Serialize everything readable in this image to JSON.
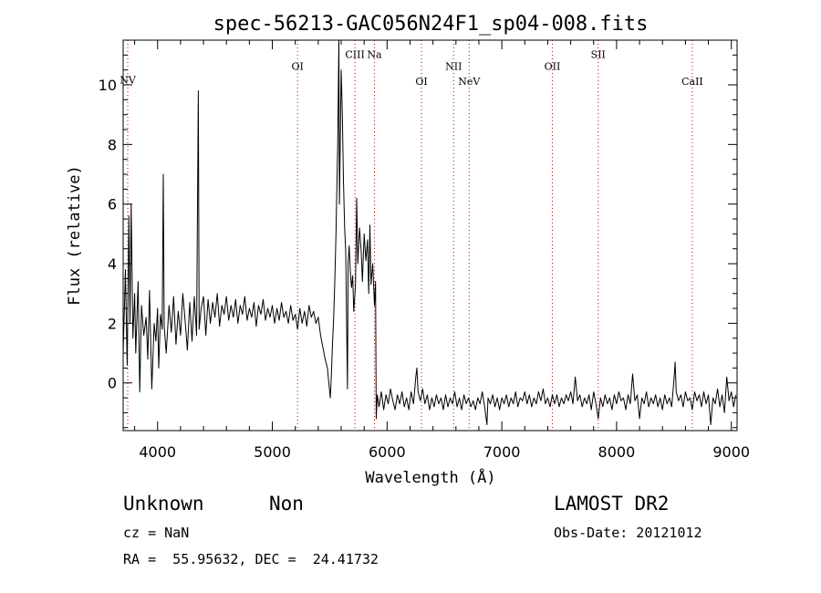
{
  "chart_data": {
    "type": "line",
    "title": "spec-56213-GAC056N24F1_sp04-008.fits",
    "xlabel": "Wavelength (Å)",
    "ylabel": "Flux (relative)",
    "xlim": [
      3700,
      9050
    ],
    "ylim": [
      -1.6,
      11.5
    ],
    "xticks": [
      4000,
      5000,
      6000,
      7000,
      8000,
      9000
    ],
    "yticks": [
      0,
      2,
      4,
      6,
      8,
      10
    ],
    "grid": false,
    "series": [
      {
        "points": [
          [
            3700,
            1.0
          ],
          [
            3720,
            3.8
          ],
          [
            3735,
            0.6
          ],
          [
            3750,
            5.6
          ],
          [
            3760,
            2.0
          ],
          [
            3770,
            6.0
          ],
          [
            3785,
            1.5
          ],
          [
            3800,
            3.0
          ],
          [
            3810,
            1.0
          ],
          [
            3830,
            3.4
          ],
          [
            3845,
            -0.3
          ],
          [
            3860,
            2.6
          ],
          [
            3880,
            1.6
          ],
          [
            3900,
            2.2
          ],
          [
            3915,
            0.8
          ],
          [
            3930,
            3.1
          ],
          [
            3950,
            -0.2
          ],
          [
            3970,
            2.0
          ],
          [
            3985,
            1.4
          ],
          [
            4000,
            2.5
          ],
          [
            4010,
            0.5
          ],
          [
            4025,
            2.3
          ],
          [
            4040,
            1.8
          ],
          [
            4050,
            7.0
          ],
          [
            4058,
            1.9
          ],
          [
            4075,
            1.0
          ],
          [
            4100,
            2.6
          ],
          [
            4120,
            1.7
          ],
          [
            4140,
            2.9
          ],
          [
            4160,
            1.3
          ],
          [
            4180,
            2.4
          ],
          [
            4200,
            1.6
          ],
          [
            4220,
            3.0
          ],
          [
            4240,
            2.1
          ],
          [
            4260,
            1.1
          ],
          [
            4280,
            2.7
          ],
          [
            4300,
            1.4
          ],
          [
            4320,
            2.9
          ],
          [
            4340,
            1.6
          ],
          [
            4355,
            9.8
          ],
          [
            4362,
            1.8
          ],
          [
            4380,
            2.5
          ],
          [
            4400,
            2.9
          ],
          [
            4420,
            1.6
          ],
          [
            4440,
            2.8
          ],
          [
            4460,
            2.0
          ],
          [
            4480,
            2.7
          ],
          [
            4500,
            2.2
          ],
          [
            4520,
            3.0
          ],
          [
            4540,
            1.9
          ],
          [
            4560,
            2.6
          ],
          [
            4580,
            2.3
          ],
          [
            4600,
            2.9
          ],
          [
            4620,
            2.1
          ],
          [
            4640,
            2.6
          ],
          [
            4660,
            2.2
          ],
          [
            4680,
            2.8
          ],
          [
            4700,
            2.0
          ],
          [
            4720,
            2.6
          ],
          [
            4740,
            2.3
          ],
          [
            4760,
            2.9
          ],
          [
            4780,
            2.1
          ],
          [
            4800,
            2.5
          ],
          [
            4820,
            2.2
          ],
          [
            4840,
            2.7
          ],
          [
            4860,
            1.9
          ],
          [
            4880,
            2.6
          ],
          [
            4900,
            2.3
          ],
          [
            4920,
            2.8
          ],
          [
            4940,
            2.1
          ],
          [
            4960,
            2.5
          ],
          [
            4980,
            2.2
          ],
          [
            5000,
            2.6
          ],
          [
            5020,
            2.0
          ],
          [
            5040,
            2.5
          ],
          [
            5060,
            2.1
          ],
          [
            5080,
            2.7
          ],
          [
            5100,
            2.2
          ],
          [
            5120,
            2.4
          ],
          [
            5140,
            2.0
          ],
          [
            5160,
            2.6
          ],
          [
            5180,
            2.1
          ],
          [
            5200,
            2.3
          ],
          [
            5220,
            1.8
          ],
          [
            5240,
            2.5
          ],
          [
            5260,
            2.0
          ],
          [
            5280,
            2.4
          ],
          [
            5300,
            1.9
          ],
          [
            5320,
            2.6
          ],
          [
            5340,
            2.2
          ],
          [
            5360,
            2.4
          ],
          [
            5380,
            2.0
          ],
          [
            5400,
            2.2
          ],
          [
            5420,
            1.6
          ],
          [
            5440,
            1.2
          ],
          [
            5460,
            0.8
          ],
          [
            5480,
            0.5
          ],
          [
            5495,
            -0.1
          ],
          [
            5505,
            -0.5
          ],
          [
            5515,
            0.3
          ],
          [
            5525,
            1.4
          ],
          [
            5535,
            2.2
          ],
          [
            5545,
            3.5
          ],
          [
            5555,
            5.0
          ],
          [
            5570,
            8.0
          ],
          [
            5580,
            11.5
          ],
          [
            5585,
            6.0
          ],
          [
            5600,
            10.5
          ],
          [
            5610,
            9.0
          ],
          [
            5620,
            6.8
          ],
          [
            5630,
            5.2
          ],
          [
            5640,
            4.4
          ],
          [
            5650,
            1.2
          ],
          [
            5655,
            -0.2
          ],
          [
            5660,
            4.0
          ],
          [
            5670,
            4.6
          ],
          [
            5680,
            3.7
          ],
          [
            5690,
            3.2
          ],
          [
            5700,
            3.6
          ],
          [
            5710,
            2.4
          ],
          [
            5725,
            3.3
          ],
          [
            5735,
            6.2
          ],
          [
            5745,
            4.0
          ],
          [
            5760,
            5.2
          ],
          [
            5775,
            4.4
          ],
          [
            5785,
            3.4
          ],
          [
            5800,
            5.0
          ],
          [
            5815,
            4.1
          ],
          [
            5830,
            4.8
          ],
          [
            5840,
            3.0
          ],
          [
            5850,
            5.3
          ],
          [
            5860,
            3.3
          ],
          [
            5875,
            4.0
          ],
          [
            5890,
            2.6
          ],
          [
            5900,
            3.4
          ],
          [
            5905,
            -1.2
          ],
          [
            5915,
            -0.4
          ],
          [
            5930,
            -0.8
          ],
          [
            5950,
            -0.3
          ],
          [
            5970,
            -0.9
          ],
          [
            5990,
            -0.4
          ],
          [
            6010,
            -0.7
          ],
          [
            6030,
            -0.2
          ],
          [
            6050,
            -0.6
          ],
          [
            6070,
            -0.9
          ],
          [
            6090,
            -0.4
          ],
          [
            6110,
            -0.7
          ],
          [
            6130,
            -0.3
          ],
          [
            6150,
            -0.8
          ],
          [
            6170,
            -0.5
          ],
          [
            6190,
            -0.9
          ],
          [
            6210,
            -0.3
          ],
          [
            6230,
            -0.7
          ],
          [
            6250,
            0.2
          ],
          [
            6260,
            0.5
          ],
          [
            6270,
            -0.3
          ],
          [
            6290,
            -0.6
          ],
          [
            6310,
            -0.2
          ],
          [
            6330,
            -0.7
          ],
          [
            6350,
            -0.4
          ],
          [
            6370,
            -0.9
          ],
          [
            6390,
            -0.5
          ],
          [
            6410,
            -0.8
          ],
          [
            6430,
            -0.4
          ],
          [
            6450,
            -0.7
          ],
          [
            6470,
            -0.5
          ],
          [
            6490,
            -0.9
          ],
          [
            6510,
            -0.4
          ],
          [
            6530,
            -0.8
          ],
          [
            6550,
            -0.5
          ],
          [
            6570,
            -0.7
          ],
          [
            6590,
            -0.3
          ],
          [
            6610,
            -0.8
          ],
          [
            6630,
            -0.5
          ],
          [
            6650,
            -0.9
          ],
          [
            6670,
            -0.4
          ],
          [
            6690,
            -0.7
          ],
          [
            6710,
            -0.5
          ],
          [
            6730,
            -0.8
          ],
          [
            6750,
            -0.6
          ],
          [
            6770,
            -0.9
          ],
          [
            6790,
            -0.5
          ],
          [
            6810,
            -0.7
          ],
          [
            6830,
            -0.3
          ],
          [
            6850,
            -0.8
          ],
          [
            6870,
            -1.4
          ],
          [
            6880,
            -0.5
          ],
          [
            6900,
            -0.7
          ],
          [
            6920,
            -0.4
          ],
          [
            6940,
            -0.8
          ],
          [
            6960,
            -0.5
          ],
          [
            6980,
            -0.9
          ],
          [
            7000,
            -0.5
          ],
          [
            7020,
            -0.7
          ],
          [
            7040,
            -0.4
          ],
          [
            7060,
            -0.8
          ],
          [
            7080,
            -0.5
          ],
          [
            7100,
            -0.7
          ],
          [
            7120,
            -0.3
          ],
          [
            7140,
            -0.8
          ],
          [
            7160,
            -0.5
          ],
          [
            7180,
            -0.6
          ],
          [
            7200,
            -0.3
          ],
          [
            7220,
            -0.7
          ],
          [
            7240,
            -0.4
          ],
          [
            7260,
            -0.8
          ],
          [
            7280,
            -0.5
          ],
          [
            7300,
            -0.7
          ],
          [
            7320,
            -0.3
          ],
          [
            7340,
            -0.6
          ],
          [
            7360,
            -0.2
          ],
          [
            7380,
            -0.7
          ],
          [
            7400,
            -0.5
          ],
          [
            7420,
            -0.8
          ],
          [
            7440,
            -0.4
          ],
          [
            7460,
            -0.7
          ],
          [
            7480,
            -0.4
          ],
          [
            7500,
            -0.8
          ],
          [
            7520,
            -0.5
          ],
          [
            7540,
            -0.7
          ],
          [
            7560,
            -0.4
          ],
          [
            7580,
            -0.6
          ],
          [
            7600,
            -0.3
          ],
          [
            7620,
            -0.7
          ],
          [
            7640,
            0.2
          ],
          [
            7660,
            -0.6
          ],
          [
            7680,
            -0.4
          ],
          [
            7700,
            -0.8
          ],
          [
            7720,
            -0.5
          ],
          [
            7740,
            -0.7
          ],
          [
            7760,
            -0.4
          ],
          [
            7780,
            -0.9
          ],
          [
            7800,
            -0.3
          ],
          [
            7820,
            -0.7
          ],
          [
            7840,
            -1.2
          ],
          [
            7860,
            -0.5
          ],
          [
            7880,
            -0.8
          ],
          [
            7900,
            -0.4
          ],
          [
            7920,
            -0.7
          ],
          [
            7940,
            -0.5
          ],
          [
            7960,
            -0.9
          ],
          [
            7980,
            -0.4
          ],
          [
            8000,
            -0.7
          ],
          [
            8020,
            -0.3
          ],
          [
            8040,
            -0.6
          ],
          [
            8060,
            -0.5
          ],
          [
            8080,
            -0.9
          ],
          [
            8100,
            -0.4
          ],
          [
            8120,
            -0.7
          ],
          [
            8140,
            0.3
          ],
          [
            8160,
            -0.6
          ],
          [
            8180,
            -0.4
          ],
          [
            8200,
            -1.2
          ],
          [
            8220,
            -0.5
          ],
          [
            8240,
            -0.7
          ],
          [
            8260,
            -0.3
          ],
          [
            8280,
            -0.8
          ],
          [
            8300,
            -0.5
          ],
          [
            8320,
            -0.7
          ],
          [
            8340,
            -0.4
          ],
          [
            8360,
            -0.8
          ],
          [
            8380,
            -0.5
          ],
          [
            8400,
            -0.9
          ],
          [
            8420,
            -0.4
          ],
          [
            8440,
            -0.7
          ],
          [
            8460,
            -0.5
          ],
          [
            8480,
            -0.8
          ],
          [
            8500,
            0.1
          ],
          [
            8510,
            0.7
          ],
          [
            8520,
            -0.3
          ],
          [
            8540,
            -0.6
          ],
          [
            8560,
            -0.4
          ],
          [
            8580,
            -0.8
          ],
          [
            8600,
            -0.3
          ],
          [
            8620,
            -0.6
          ],
          [
            8640,
            -0.5
          ],
          [
            8660,
            -0.9
          ],
          [
            8680,
            -0.3
          ],
          [
            8700,
            -0.6
          ],
          [
            8720,
            -0.4
          ],
          [
            8740,
            -0.8
          ],
          [
            8760,
            -0.3
          ],
          [
            8780,
            -0.7
          ],
          [
            8800,
            -0.4
          ],
          [
            8820,
            -1.4
          ],
          [
            8840,
            -0.5
          ],
          [
            8860,
            -0.7
          ],
          [
            8880,
            -0.2
          ],
          [
            8900,
            -0.8
          ],
          [
            8920,
            -0.4
          ],
          [
            8940,
            -1.0
          ],
          [
            8960,
            0.2
          ],
          [
            8980,
            -0.6
          ],
          [
            9000,
            -0.3
          ],
          [
            9020,
            -0.8
          ],
          [
            9040,
            -0.4
          ]
        ]
      }
    ],
    "annotations": [
      {
        "text": "NV",
        "x": 3740,
        "label_y": 10.05
      },
      {
        "text": "OI",
        "x": 5220,
        "label_y": 10.5
      },
      {
        "text": "CIII",
        "x": 5720,
        "label_y": 10.9
      },
      {
        "text": "Na",
        "x": 5890,
        "label_y": 10.9
      },
      {
        "text": "OI",
        "x": 6300,
        "label_y": 10.0
      },
      {
        "text": "NII",
        "x": 6580,
        "label_y": 10.5
      },
      {
        "text": "NeV",
        "x": 6715,
        "label_y": 10.0
      },
      {
        "text": "OII",
        "x": 7440,
        "label_y": 10.5
      },
      {
        "text": "SII",
        "x": 7840,
        "label_y": 10.9
      },
      {
        "text": "CaII",
        "x": 8660,
        "label_y": 10.0
      }
    ],
    "line_color": "#000000",
    "marker_color": "#cc0000"
  },
  "footer": {
    "class_label": "Unknown",
    "subclass_label": "Non",
    "survey_label": "LAMOST DR2",
    "cz_text": "cz = NaN",
    "obs_date_text": "Obs-Date: 20121012",
    "coords_text": "RA =  55.95632, DEC =  24.41732"
  }
}
